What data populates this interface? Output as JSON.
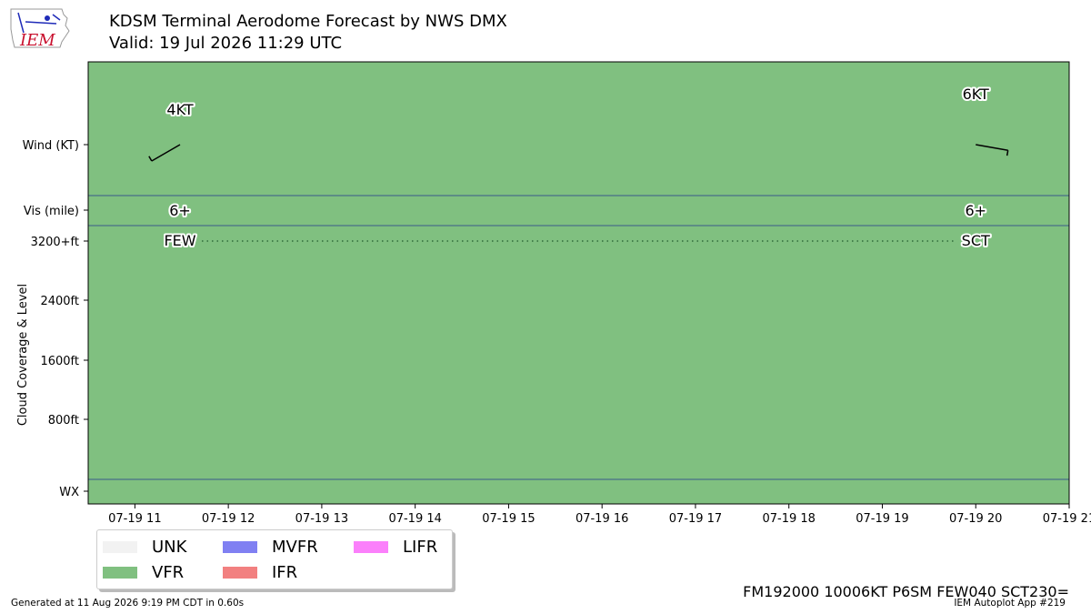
{
  "header": {
    "title": "KDSM Terminal Aerodome Forecast by NWS DMX",
    "subtitle": "Valid: 19 Jul 2026 11:29 UTC"
  },
  "logo": {
    "text": "IEM",
    "icon": "iem-iowa-logo-icon",
    "color": "#c8102e",
    "line_color": "#1f2bb8"
  },
  "chart_data": {
    "type": "taf-timeline",
    "background_category": "VFR",
    "background_color": "#80c080",
    "x_tick_labels": [
      "07-19 11",
      "07-19 12",
      "07-19 13",
      "07-19 14",
      "07-19 15",
      "07-19 16",
      "07-19 17",
      "07-19 18",
      "07-19 19",
      "07-19 20",
      "07-19 21"
    ],
    "x_ticks_hours": [
      11,
      12,
      13,
      14,
      15,
      16,
      17,
      18,
      19,
      20,
      21
    ],
    "xlim_hours": [
      10.5,
      21
    ],
    "y_tick_labels": [
      "Wind (KT)",
      "Vis (mile)",
      "3200+ft",
      "2400ft",
      "1600ft",
      "800ft",
      "WX"
    ],
    "ylabel": "Cloud Coverage & Level",
    "forecast_periods": [
      {
        "time_hours": 11.483,
        "wind_label": "4KT",
        "wind_speed_kt": 4,
        "wind_dir_deg": 240,
        "visibility": "6+",
        "cloud": "FEW",
        "cloud_level": "3200+ft"
      },
      {
        "time_hours": 20.0,
        "wind_label": "6KT",
        "wind_speed_kt": 6,
        "wind_dir_deg": 100,
        "visibility": "6+",
        "cloud": "SCT",
        "cloud_level": "3200+ft"
      }
    ],
    "legend": [
      {
        "label": "UNK",
        "color": "#f2f2f2"
      },
      {
        "label": "VFR",
        "color": "#80c080"
      },
      {
        "label": "MVFR",
        "color": "#8080f2"
      },
      {
        "label": "IFR",
        "color": "#f28080"
      },
      {
        "label": "LIFR",
        "color": "#fb80fb"
      }
    ],
    "legend_placement": "below-left"
  },
  "taf_text": "FM192000 10006KT P6SM FEW040 SCT230=",
  "footer": {
    "generated": "Generated at 11 Aug 2026 9:19 PM CDT in 0.60s",
    "app": "IEM Autoplot App #219"
  }
}
